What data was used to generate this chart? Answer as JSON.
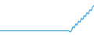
{
  "line_color": "#4aabdb",
  "background_color": "#ffffff",
  "linewidth": 0.9,
  "y_values": [
    1,
    1,
    1,
    1,
    1,
    1,
    1,
    1,
    1,
    1,
    1,
    1,
    1,
    1,
    1,
    1,
    1,
    1,
    1,
    1,
    1,
    1,
    1,
    1,
    1,
    1,
    1,
    1,
    1,
    1,
    1,
    1,
    1,
    1,
    1,
    1,
    1,
    1,
    1,
    1,
    1,
    1,
    1,
    1,
    1,
    1,
    1,
    1,
    1,
    1,
    0.6,
    1.0,
    2.5,
    2.0,
    3.5,
    3.0,
    4.5,
    4.0,
    5.5,
    5.0,
    6.5,
    6.0,
    7.5,
    7.0,
    8.5,
    8.2,
    9.5,
    10.0
  ],
  "ylim": [
    -0.5,
    12.0
  ],
  "xlim": [
    0,
    67
  ]
}
